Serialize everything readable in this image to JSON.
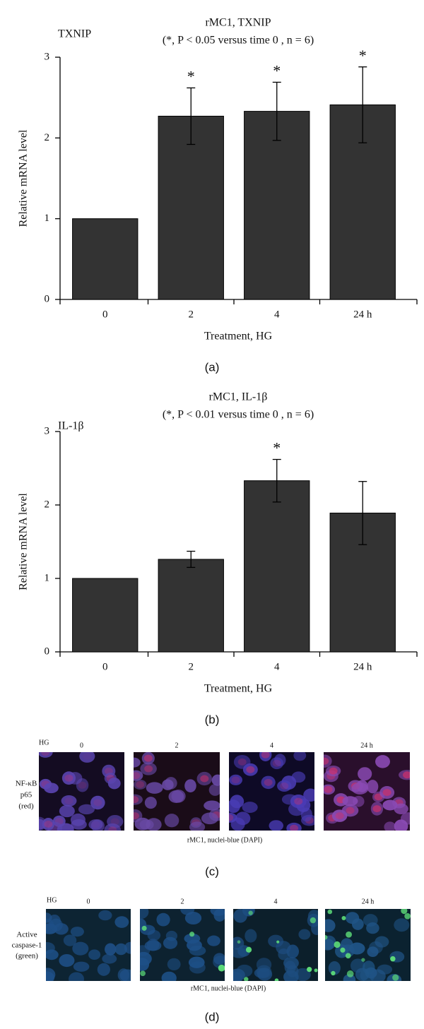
{
  "chart_data": [
    {
      "type": "bar",
      "panel_label": "(a)",
      "corner_label": "TXNIP",
      "title": "rMC1, TXNIP",
      "subtitle": "(*, P < 0.05 versus time 0 , n = 6)",
      "y_label": "Relative mRNA level",
      "x_label": "Treatment, HG",
      "categories": [
        "0",
        "2",
        "4",
        "24 h"
      ],
      "values": [
        1,
        2.27,
        2.33,
        2.41
      ],
      "errors": [
        null,
        0.35,
        0.36,
        0.47
      ],
      "significance": [
        null,
        "*",
        "*",
        "*"
      ],
      "color": "#333333",
      "ylim": [
        0,
        3
      ],
      "yticks": [
        0,
        1,
        2,
        3
      ]
    },
    {
      "type": "bar",
      "panel_label": "(b)",
      "corner_label": "IL-1β",
      "title": "rMC1, IL-1β",
      "subtitle": "(*, P < 0.01 versus time 0 , n = 6)",
      "y_label": "Relative mRNA level",
      "x_label": "Treatment, HG",
      "categories": [
        "0",
        "2",
        "4",
        "24 h"
      ],
      "values": [
        1,
        1.26,
        2.33,
        1.89
      ],
      "errors": [
        null,
        0.11,
        0.29,
        0.43
      ],
      "significance": [
        null,
        null,
        "*",
        null
      ],
      "color": "#333333",
      "ylim": [
        0,
        3
      ],
      "yticks": [
        0,
        1,
        2,
        3
      ]
    }
  ],
  "image_panels": [
    {
      "panel_label": "(c)",
      "row_label": "HG",
      "columns": [
        "0",
        "2",
        "4",
        "24 h"
      ],
      "stain_label": [
        "NF-κB",
        "p65",
        "(red)"
      ],
      "caption": "rMC1, nuclei-blue (DAPI)"
    },
    {
      "panel_label": "(d)",
      "row_label": "HG",
      "columns": [
        "0",
        "2",
        "4",
        "24 h"
      ],
      "stain_label": [
        "Active",
        "caspase-1",
        "(green)"
      ],
      "caption": "rMC1, nuclei-blue (DAPI)"
    }
  ]
}
